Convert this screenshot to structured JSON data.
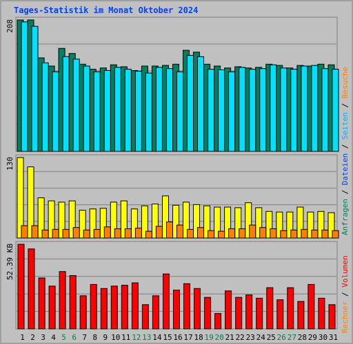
{
  "chart_data": {
    "title": "Tages-Statistik im Monat Oktober 2024",
    "type": "bar",
    "categories": [
      "1",
      "2",
      "3",
      "4",
      "5",
      "6",
      "7",
      "8",
      "9",
      "10",
      "11",
      "12",
      "13",
      "14",
      "15",
      "16",
      "17",
      "18",
      "19",
      "20",
      "21",
      "22",
      "23",
      "24",
      "25",
      "26",
      "27",
      "28",
      "29",
      "30",
      "31"
    ],
    "weekend_days": [
      5,
      6,
      12,
      13,
      19,
      20,
      26,
      27
    ],
    "x_label_colors": {
      "weekday": "#000000",
      "weekend": "#008040"
    },
    "panels": [
      {
        "id": "top",
        "ymax_label": "208",
        "ymax": 208,
        "series": [
          {
            "name": "Anfragen",
            "color": "#008060",
            "values": [
              208,
              208,
              148,
              135,
              163,
              155,
              138,
              130,
              132,
              137,
              134,
              128,
              135,
              135,
              136,
              138,
              160,
              157,
              138,
              135,
              132,
              134,
              132,
              133,
              138,
              136,
              132,
              136,
              135,
              138,
              137
            ]
          },
          {
            "name": "Dateien",
            "color": "#00e0ff",
            "values": [
              205,
              198,
              140,
              126,
              150,
              146,
              135,
              126,
              128,
              133,
              130,
              127,
              124,
              133,
              131,
              126,
              152,
              150,
              130,
              129,
              126,
              133,
              130,
              131,
              137,
              132,
              130,
              135,
              136,
              131,
              130
            ]
          }
        ]
      },
      {
        "id": "middle",
        "ymax_label": "130",
        "ymax": 130,
        "series": [
          {
            "name": "Seiten",
            "color": "#ffff00",
            "values": [
              130,
              115,
              65,
              60,
              58,
              60,
              45,
              47,
              48,
              58,
              60,
              47,
              52,
              55,
              68,
              53,
              58,
              54,
              52,
              50,
              50,
              49,
              57,
              49,
              43,
              42,
              42,
              50,
              42,
              43,
              41
            ]
          },
          {
            "name": "Besuche",
            "color": "#ff8000",
            "values": [
              20,
              20,
              13,
              14,
              14,
              17,
              13,
              14,
              18,
              15,
              15,
              16,
              11,
              19,
              26,
              21,
              14,
              17,
              12,
              11,
              15,
              15,
              21,
              17,
              15,
              12,
              13,
              14,
              13,
              13,
              12
            ]
          }
        ]
      },
      {
        "id": "bottom",
        "ymax_label": "52.39 KB",
        "ymax": 52.39,
        "series": [
          {
            "name": "Volumen",
            "color": "#ff0000",
            "values": [
              52.39,
              49.5,
              31.5,
              26.5,
              35.5,
              33,
              20.5,
              27.5,
              25,
              26.5,
              27,
              28.5,
              15,
              20.5,
              34,
              24,
              28,
              25,
              19.5,
              9.5,
              23.5,
              19.5,
              21,
              19,
              25.5,
              18,
              25.5,
              17,
              27.5,
              19,
              15
            ]
          }
        ]
      }
    ],
    "right_axis_top": [
      {
        "text": "Anfragen",
        "color": "#008060"
      },
      {
        "text": " / ",
        "color": "#000000"
      },
      {
        "text": "Dateien",
        "color": "#0040ff"
      },
      {
        "text": " / ",
        "color": "#000000"
      },
      {
        "text": "Seiten",
        "color": "#00b0ff"
      },
      {
        "text": " / ",
        "color": "#000000"
      },
      {
        "text": "Besuche",
        "color": "#ff8000"
      }
    ],
    "right_axis_bottom": [
      {
        "text": "Rechner",
        "color": "#ff8000"
      },
      {
        "text": " / ",
        "color": "#000000"
      },
      {
        "text": "Volumen",
        "color": "#ff0000"
      }
    ]
  }
}
